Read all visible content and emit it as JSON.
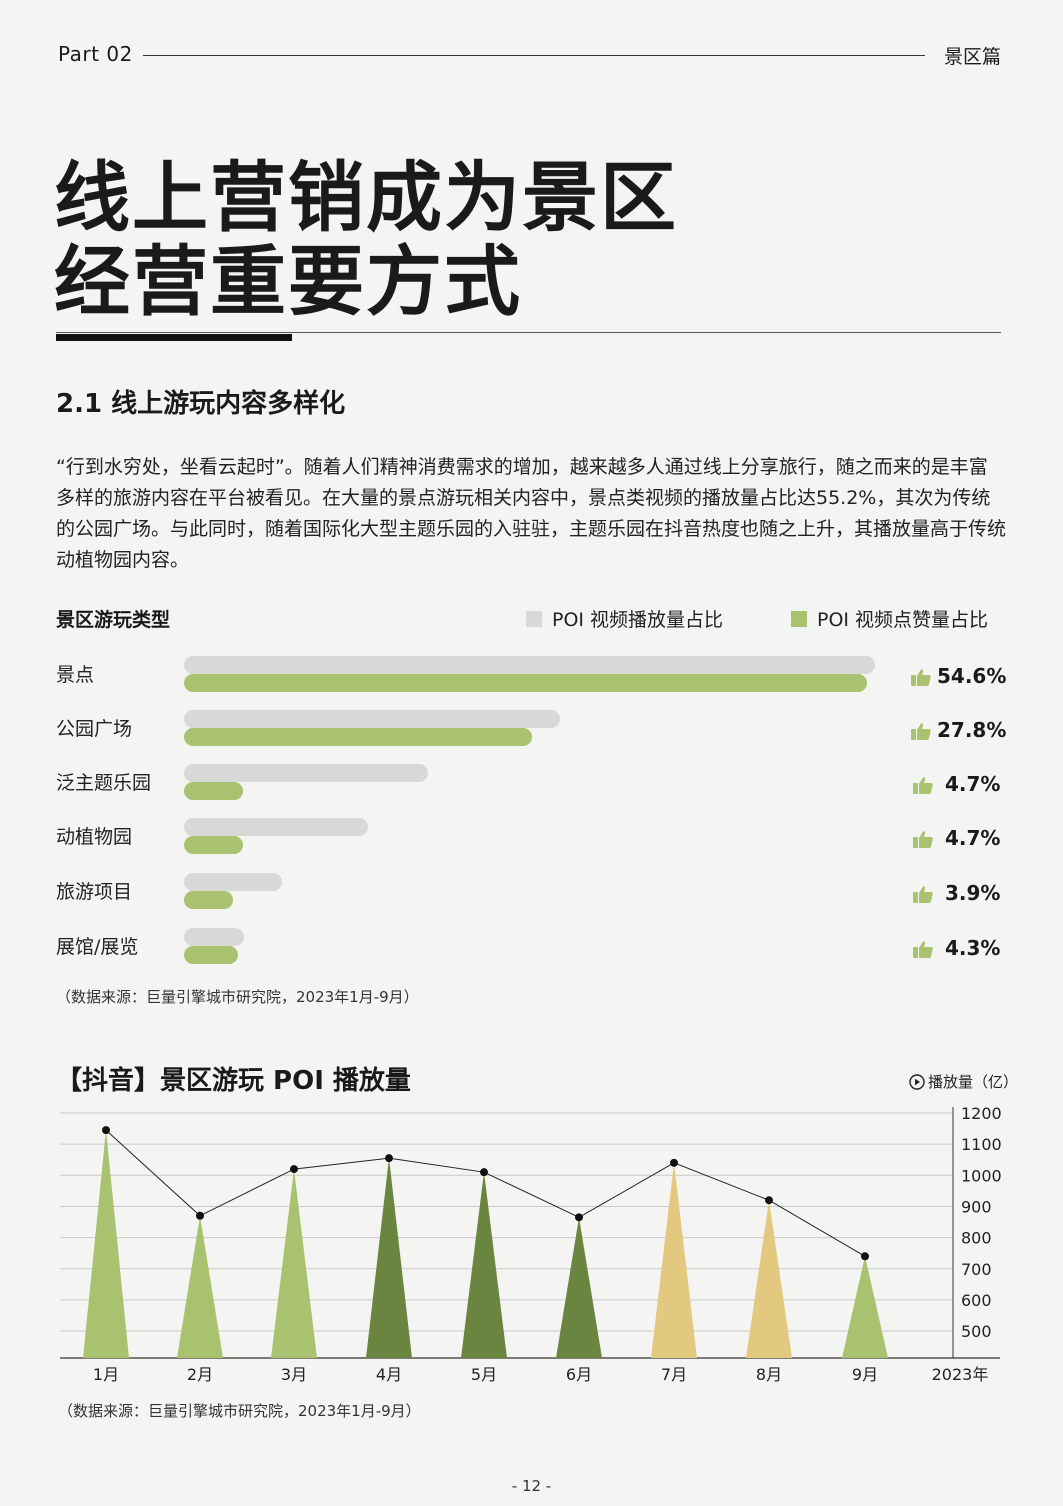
{
  "header": {
    "part": "Part 02",
    "section": "景区篇"
  },
  "title": {
    "line1": "线上营销成为景区",
    "line2": "经营重要方式"
  },
  "sub_heading": "2.1 线上游玩内容多样化",
  "paragraph": "“行到水穷处，坐看云起时”。随着人们精神消费需求的增加，越来越多人通过线上分享旅行，随之而来的是丰富多样的旅游内容在平台被看见。在大量的景点游玩相关内容中，景点类视频的播放量占比达55.2%，其次为传统的公园广场。与此同时，随着国际化大型主题乐园的入驻驻，主题乐园在抖音热度也随之上升，其播放量高于传统动植物园内容。",
  "bar_chart_title": "景区游玩类型",
  "colors": {
    "views": "#d8d8d6",
    "likes": "#a8c26f",
    "dark_green": "#6a8540",
    "yellow": "#e3c97f"
  },
  "thumb_icon": "thumbs-up-icon",
  "play_icon": "play-circle-icon",
  "chart_data": [
    {
      "type": "bar",
      "title": "景区游玩类型",
      "categories": [
        "景点",
        "公园广场",
        "泛主题乐园",
        "动植物园",
        "旅游项目",
        "展馆/展览"
      ],
      "series": [
        {
          "name": "POI 视频播放量占比",
          "values": [
            55.2,
            30.0,
            19.5,
            14.7,
            7.8,
            4.8
          ]
        },
        {
          "name": "POI 视频点赞量占比",
          "values": [
            54.6,
            27.8,
            4.7,
            4.7,
            3.9,
            4.3
          ]
        }
      ],
      "data_labels": [
        "54.6%",
        "27.8%",
        "4.7%",
        "4.7%",
        "3.9%",
        "4.3%"
      ],
      "legend": "top-right",
      "source": "（数据来源：巨量引擎城市研究院，2023年1月-9月）"
    },
    {
      "type": "line",
      "title": "【抖音】景区游玩 POI 播放量",
      "unit_label": "播放量（亿）",
      "categories": [
        "1月",
        "2月",
        "3月",
        "4月",
        "5月",
        "6月",
        "7月",
        "8月",
        "9月"
      ],
      "x_end_label": "2023年",
      "values": [
        1145,
        870,
        1020,
        1055,
        1010,
        865,
        1040,
        920,
        740
      ],
      "bar_colors": [
        "#a8c26f",
        "#a8c26f",
        "#a8c26f",
        "#6a8540",
        "#6a8540",
        "#6a8540",
        "#e3c97f",
        "#e3c97f",
        "#a8c26f"
      ],
      "y_ticks": [
        1200,
        1100,
        1000,
        900,
        800,
        700,
        600,
        500
      ],
      "ylim": [
        420,
        1200
      ],
      "grid": true,
      "source": "（数据来源：巨量引擎城市研究院，2023年1月-9月）"
    }
  ],
  "page_number": "- 12 -"
}
